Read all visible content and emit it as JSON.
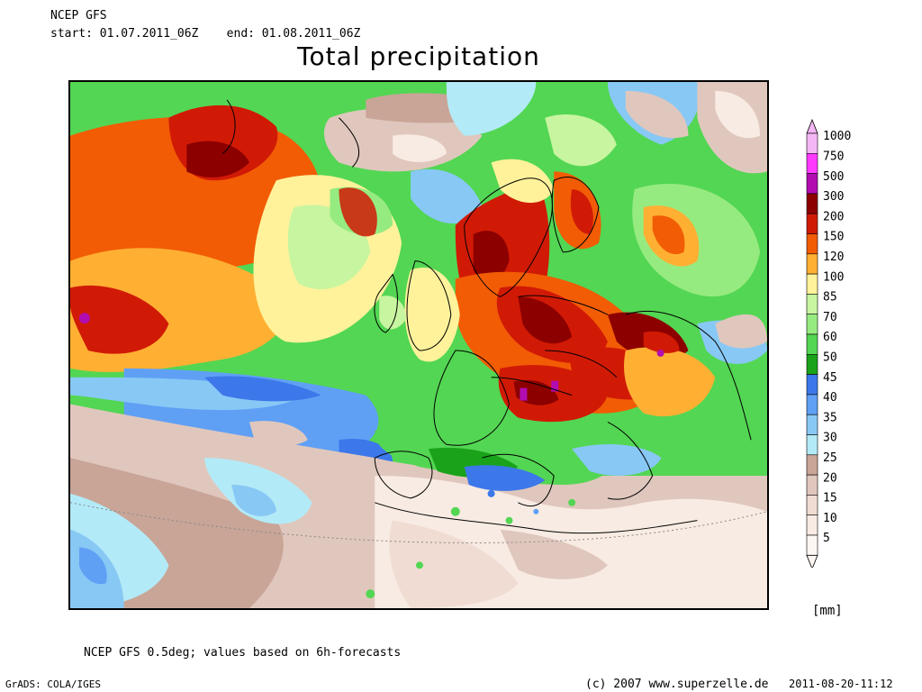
{
  "header": {
    "model": "NCEP GFS",
    "period": "start: 01.07.2011_06Z    end: 01.08.2011_06Z"
  },
  "title": "Total precipitation",
  "legend": {
    "unit": "[mm]",
    "levels": [
      {
        "label": "1000",
        "color": "#f5b6f5"
      },
      {
        "label": "750",
        "color": "#ff39ff"
      },
      {
        "label": "500",
        "color": "#b10db1"
      },
      {
        "label": "300",
        "color": "#8c0000"
      },
      {
        "label": "200",
        "color": "#d11a06"
      },
      {
        "label": "150",
        "color": "#f25c05"
      },
      {
        "label": "120",
        "color": "#ffb033"
      },
      {
        "label": "100",
        "color": "#fff29b"
      },
      {
        "label": "85",
        "color": "#c8f5a0"
      },
      {
        "label": "70",
        "color": "#96eb80"
      },
      {
        "label": "60",
        "color": "#53d653"
      },
      {
        "label": "50",
        "color": "#1aa31a"
      },
      {
        "label": "45",
        "color": "#3c78ea"
      },
      {
        "label": "40",
        "color": "#5fa0f5"
      },
      {
        "label": "35",
        "color": "#88c8f5"
      },
      {
        "label": "30",
        "color": "#b3eaf7"
      },
      {
        "label": "25",
        "color": "#c9a597"
      },
      {
        "label": "20",
        "color": "#e0c7bd"
      },
      {
        "label": "15",
        "color": "#f0dcd2"
      },
      {
        "label": "10",
        "color": "#f8ebe3"
      },
      {
        "label": "5",
        "color": "#fdf6f2"
      }
    ]
  },
  "footnote": "NCEP GFS 0.5deg; values based on 6h-forecasts",
  "footer": {
    "software": "GrADS: COLA/IGES",
    "copyright": "(c) 2007 www.superzelle.de",
    "timestamp": "2011-08-20-11:12"
  },
  "map": {
    "region": "Europe / North Atlantic",
    "field": "total precipitation"
  }
}
